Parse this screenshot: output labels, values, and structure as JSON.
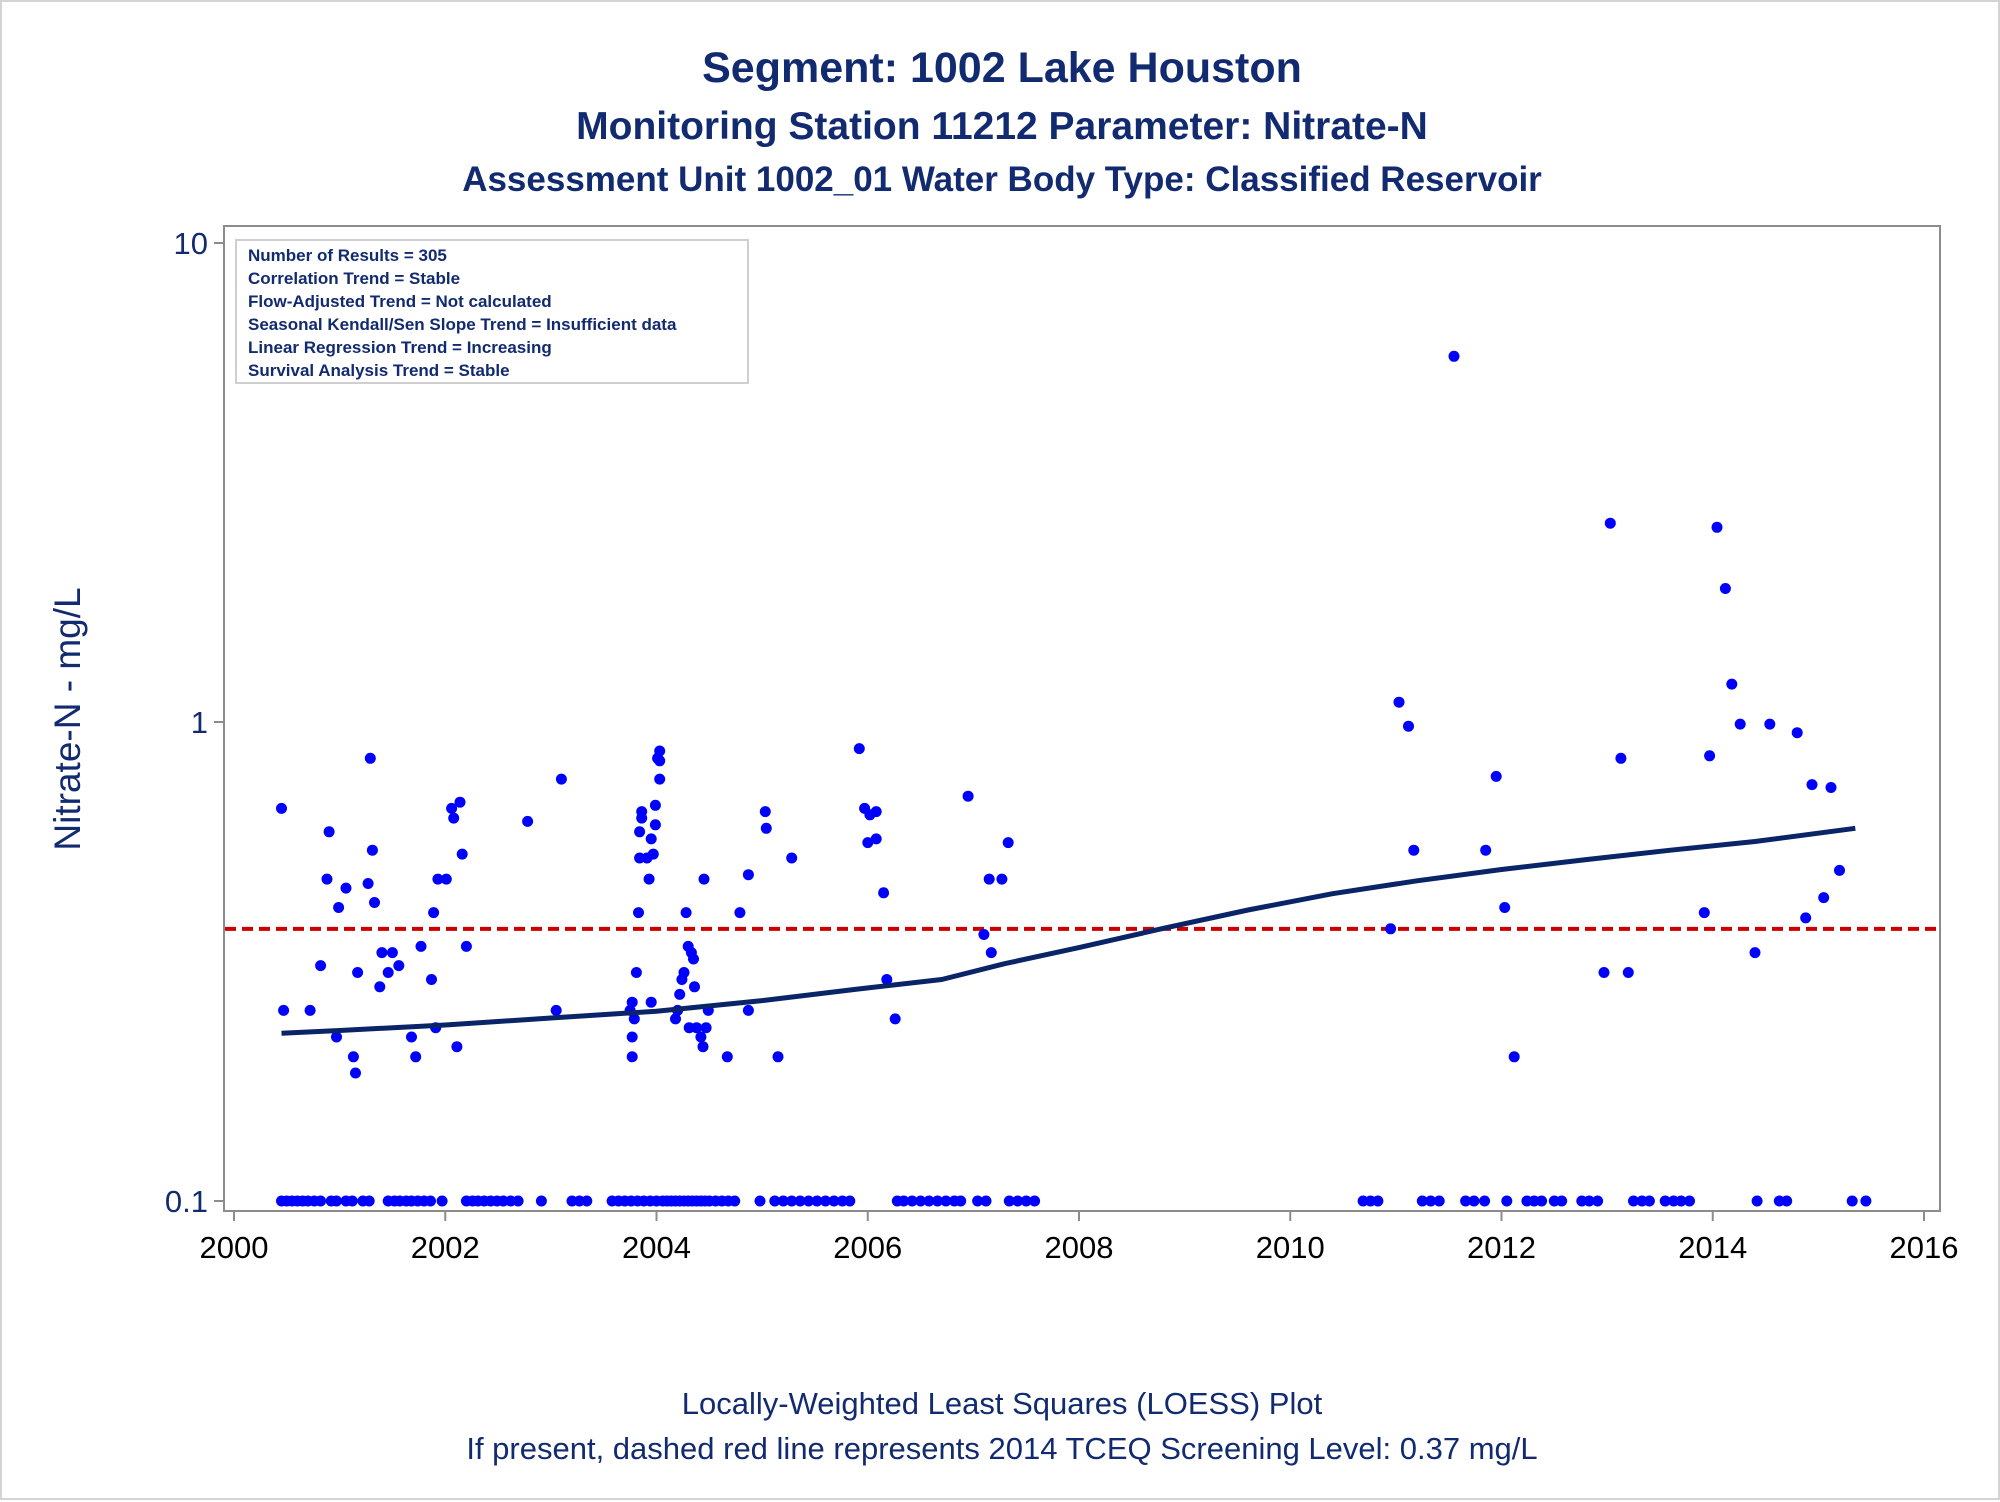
{
  "titles": {
    "line1": "Segment: 1002  Lake Houston",
    "line2": "Monitoring Station 11212 Parameter: Nitrate-N",
    "line3": "Assessment Unit 1002_01   Water Body Type: Classified Reservoir"
  },
  "footnotes": {
    "line1": "Locally-Weighted Least Squares (LOESS) Plot",
    "line2": "If present, dashed red line represents 2014 TCEQ Screening Level: 0.37 mg/L"
  },
  "stats_box": [
    "Number of Results = 305",
    "Correlation Trend = Stable",
    "Flow-Adjusted Trend = Not calculated",
    "Seasonal Kendall/Sen Slope Trend = Insufficient data",
    "Linear Regression Trend = Increasing",
    "Survival Analysis Trend = Stable"
  ],
  "colors": {
    "points": "#0000ff",
    "loess": "#0a2468",
    "screening": "#cc0000",
    "text": "#122b70",
    "axis": "#8c8c8c"
  },
  "chart_data": {
    "type": "scatter",
    "ylabel": "Nitrate-N - mg/L",
    "xlabel": "",
    "y_scale": "log",
    "xlim": [
      2000,
      2016
    ],
    "ylim": [
      0.1,
      10
    ],
    "x_ticks": [
      2000,
      2002,
      2004,
      2006,
      2008,
      2010,
      2012,
      2014,
      2016
    ],
    "x_tick_labels": [
      "2000",
      "2002",
      "2004",
      "2006",
      "2008",
      "2010",
      "2012",
      "2014",
      "2016"
    ],
    "y_ticks": [
      0.1,
      1,
      10
    ],
    "y_tick_labels": [
      "0.1",
      "1",
      "10"
    ],
    "grid": false,
    "screening_level": 0.37,
    "series": [
      {
        "kind": "points",
        "points": [
          [
            2000.45,
            0.66
          ],
          [
            2000.47,
            0.25
          ],
          [
            2000.72,
            0.25
          ],
          [
            2000.82,
            0.31
          ],
          [
            2000.88,
            0.47
          ],
          [
            2000.9,
            0.59
          ],
          [
            2000.97,
            0.22
          ],
          [
            2000.99,
            0.41
          ],
          [
            2001.06,
            0.45
          ],
          [
            2001.13,
            0.2
          ],
          [
            2001.15,
            0.185
          ],
          [
            2001.17,
            0.3
          ],
          [
            2001.27,
            0.46
          ],
          [
            2001.29,
            0.84
          ],
          [
            2001.31,
            0.54
          ],
          [
            2001.33,
            0.42
          ],
          [
            2001.38,
            0.28
          ],
          [
            2001.4,
            0.33
          ],
          [
            2001.46,
            0.3
          ],
          [
            2001.5,
            0.33
          ],
          [
            2001.56,
            0.31
          ],
          [
            2001.68,
            0.22
          ],
          [
            2001.72,
            0.2
          ],
          [
            2001.77,
            0.34
          ],
          [
            2001.87,
            0.29
          ],
          [
            2001.89,
            0.4
          ],
          [
            2001.91,
            0.23
          ],
          [
            2001.93,
            0.47
          ],
          [
            2002.01,
            0.47
          ],
          [
            2002.06,
            0.66
          ],
          [
            2002.08,
            0.63
          ],
          [
            2002.11,
            0.21
          ],
          [
            2002.14,
            0.68
          ],
          [
            2002.16,
            0.53
          ],
          [
            2002.2,
            0.34
          ],
          [
            2002.78,
            0.62
          ],
          [
            2003.1,
            0.76
          ],
          [
            2003.05,
            0.25
          ],
          [
            2003.75,
            0.25
          ],
          [
            2003.77,
            0.26
          ],
          [
            2003.77,
            0.22
          ],
          [
            2003.77,
            0.2
          ],
          [
            2003.79,
            0.24
          ],
          [
            2003.81,
            0.3
          ],
          [
            2003.83,
            0.4
          ],
          [
            2003.84,
            0.52
          ],
          [
            2003.84,
            0.59
          ],
          [
            2003.86,
            0.63
          ],
          [
            2003.86,
            0.65
          ],
          [
            2003.91,
            0.52
          ],
          [
            2003.93,
            0.47
          ],
          [
            2003.95,
            0.26
          ],
          [
            2003.95,
            0.57
          ],
          [
            2003.97,
            0.53
          ],
          [
            2003.99,
            0.61
          ],
          [
            2003.99,
            0.67
          ],
          [
            2004.01,
            0.84
          ],
          [
            2004.03,
            0.83
          ],
          [
            2004.03,
            0.87
          ],
          [
            2004.03,
            0.76
          ],
          [
            2004.18,
            0.24
          ],
          [
            2004.2,
            0.25
          ],
          [
            2004.22,
            0.27
          ],
          [
            2004.24,
            0.29
          ],
          [
            2004.26,
            0.3
          ],
          [
            2004.28,
            0.4
          ],
          [
            2004.3,
            0.34
          ],
          [
            2004.31,
            0.23
          ],
          [
            2004.33,
            0.33
          ],
          [
            2004.35,
            0.32
          ],
          [
            2004.36,
            0.28
          ],
          [
            2004.38,
            0.23
          ],
          [
            2004.42,
            0.22
          ],
          [
            2004.44,
            0.21
          ],
          [
            2004.45,
            0.47
          ],
          [
            2004.47,
            0.23
          ],
          [
            2004.49,
            0.25
          ],
          [
            2004.67,
            0.2
          ],
          [
            2004.79,
            0.4
          ],
          [
            2004.87,
            0.48
          ],
          [
            2004.87,
            0.25
          ],
          [
            2005.03,
            0.65
          ],
          [
            2005.04,
            0.6
          ],
          [
            2005.15,
            0.2
          ],
          [
            2005.28,
            0.52
          ],
          [
            2005.92,
            0.88
          ],
          [
            2005.97,
            0.66
          ],
          [
            2006.0,
            0.56
          ],
          [
            2006.02,
            0.64
          ],
          [
            2006.08,
            0.65
          ],
          [
            2006.08,
            0.57
          ],
          [
            2006.15,
            0.44
          ],
          [
            2006.18,
            0.29
          ],
          [
            2006.26,
            0.24
          ],
          [
            2006.95,
            0.7
          ],
          [
            2007.1,
            0.36
          ],
          [
            2007.15,
            0.47
          ],
          [
            2007.17,
            0.33
          ],
          [
            2007.27,
            0.47
          ],
          [
            2007.33,
            0.56
          ],
          [
            2010.95,
            0.37
          ],
          [
            2011.03,
            1.1
          ],
          [
            2011.12,
            0.98
          ],
          [
            2011.17,
            0.54
          ],
          [
            2011.55,
            5.8
          ],
          [
            2011.85,
            0.54
          ],
          [
            2011.95,
            0.77
          ],
          [
            2012.03,
            0.41
          ],
          [
            2012.12,
            0.2
          ],
          [
            2012.97,
            0.3
          ],
          [
            2013.03,
            2.6
          ],
          [
            2013.13,
            0.84
          ],
          [
            2013.2,
            0.3
          ],
          [
            2013.92,
            0.4
          ],
          [
            2013.97,
            0.85
          ],
          [
            2014.04,
            2.55
          ],
          [
            2014.12,
            1.9
          ],
          [
            2014.18,
            1.2
          ],
          [
            2014.26,
            0.99
          ],
          [
            2014.4,
            0.33
          ],
          [
            2014.54,
            0.99
          ],
          [
            2014.8,
            0.95
          ],
          [
            2014.88,
            0.39
          ],
          [
            2014.94,
            0.74
          ],
          [
            2015.05,
            0.43
          ],
          [
            2015.12,
            0.73
          ],
          [
            2015.2,
            0.49
          ],
          [
            2000.45,
            0.1
          ],
          [
            2000.5,
            0.1
          ],
          [
            2000.55,
            0.1
          ],
          [
            2000.6,
            0.1
          ],
          [
            2000.65,
            0.1
          ],
          [
            2000.7,
            0.1
          ],
          [
            2000.76,
            0.1
          ],
          [
            2000.82,
            0.1
          ],
          [
            2000.92,
            0.1
          ],
          [
            2000.97,
            0.1
          ],
          [
            2001.06,
            0.1
          ],
          [
            2001.12,
            0.1
          ],
          [
            2001.22,
            0.1
          ],
          [
            2001.28,
            0.1
          ],
          [
            2001.46,
            0.1
          ],
          [
            2001.52,
            0.1
          ],
          [
            2001.57,
            0.1
          ],
          [
            2001.63,
            0.1
          ],
          [
            2001.68,
            0.1
          ],
          [
            2001.74,
            0.1
          ],
          [
            2001.8,
            0.1
          ],
          [
            2001.86,
            0.1
          ],
          [
            2001.97,
            0.1
          ],
          [
            2002.2,
            0.1
          ],
          [
            2002.26,
            0.1
          ],
          [
            2002.31,
            0.1
          ],
          [
            2002.37,
            0.1
          ],
          [
            2002.43,
            0.1
          ],
          [
            2002.49,
            0.1
          ],
          [
            2002.55,
            0.1
          ],
          [
            2002.62,
            0.1
          ],
          [
            2002.69,
            0.1
          ],
          [
            2002.91,
            0.1
          ],
          [
            2003.2,
            0.1
          ],
          [
            2003.27,
            0.1
          ],
          [
            2003.34,
            0.1
          ],
          [
            2003.58,
            0.1
          ],
          [
            2003.64,
            0.1
          ],
          [
            2003.7,
            0.1
          ],
          [
            2003.76,
            0.1
          ],
          [
            2003.82,
            0.1
          ],
          [
            2003.88,
            0.1
          ],
          [
            2003.94,
            0.1
          ],
          [
            2004.0,
            0.1
          ],
          [
            2004.06,
            0.1
          ],
          [
            2004.1,
            0.1
          ],
          [
            2004.14,
            0.1
          ],
          [
            2004.18,
            0.1
          ],
          [
            2004.22,
            0.1
          ],
          [
            2004.26,
            0.1
          ],
          [
            2004.3,
            0.1
          ],
          [
            2004.34,
            0.1
          ],
          [
            2004.38,
            0.1
          ],
          [
            2004.42,
            0.1
          ],
          [
            2004.46,
            0.1
          ],
          [
            2004.5,
            0.1
          ],
          [
            2004.56,
            0.1
          ],
          [
            2004.62,
            0.1
          ],
          [
            2004.68,
            0.1
          ],
          [
            2004.74,
            0.1
          ],
          [
            2004.98,
            0.1
          ],
          [
            2005.12,
            0.1
          ],
          [
            2005.2,
            0.1
          ],
          [
            2005.28,
            0.1
          ],
          [
            2005.36,
            0.1
          ],
          [
            2005.44,
            0.1
          ],
          [
            2005.52,
            0.1
          ],
          [
            2005.6,
            0.1
          ],
          [
            2005.68,
            0.1
          ],
          [
            2005.76,
            0.1
          ],
          [
            2005.83,
            0.1
          ],
          [
            2006.28,
            0.1
          ],
          [
            2006.34,
            0.1
          ],
          [
            2006.42,
            0.1
          ],
          [
            2006.5,
            0.1
          ],
          [
            2006.58,
            0.1
          ],
          [
            2006.66,
            0.1
          ],
          [
            2006.74,
            0.1
          ],
          [
            2006.82,
            0.1
          ],
          [
            2006.88,
            0.1
          ],
          [
            2007.04,
            0.1
          ],
          [
            2007.12,
            0.1
          ],
          [
            2007.34,
            0.1
          ],
          [
            2007.42,
            0.1
          ],
          [
            2007.5,
            0.1
          ],
          [
            2007.58,
            0.1
          ],
          [
            2010.69,
            0.1
          ],
          [
            2010.76,
            0.1
          ],
          [
            2010.83,
            0.1
          ],
          [
            2011.25,
            0.1
          ],
          [
            2011.33,
            0.1
          ],
          [
            2011.41,
            0.1
          ],
          [
            2011.66,
            0.1
          ],
          [
            2011.74,
            0.1
          ],
          [
            2011.84,
            0.1
          ],
          [
            2012.05,
            0.1
          ],
          [
            2012.24,
            0.1
          ],
          [
            2012.31,
            0.1
          ],
          [
            2012.38,
            0.1
          ],
          [
            2012.5,
            0.1
          ],
          [
            2012.57,
            0.1
          ],
          [
            2012.76,
            0.1
          ],
          [
            2012.83,
            0.1
          ],
          [
            2012.91,
            0.1
          ],
          [
            2013.25,
            0.1
          ],
          [
            2013.33,
            0.1
          ],
          [
            2013.4,
            0.1
          ],
          [
            2013.55,
            0.1
          ],
          [
            2013.63,
            0.1
          ],
          [
            2013.7,
            0.1
          ],
          [
            2013.78,
            0.1
          ],
          [
            2014.42,
            0.1
          ],
          [
            2014.63,
            0.1
          ],
          [
            2014.7,
            0.1
          ],
          [
            2015.32,
            0.1
          ],
          [
            2015.45,
            0.1
          ]
        ]
      },
      {
        "kind": "loess",
        "points": [
          [
            2000.45,
            0.224
          ],
          [
            2001.0,
            0.227
          ],
          [
            2002.0,
            0.233
          ],
          [
            2003.0,
            0.241
          ],
          [
            2004.0,
            0.249
          ],
          [
            2005.0,
            0.262
          ],
          [
            2005.9,
            0.277
          ],
          [
            2006.7,
            0.29
          ],
          [
            2007.3,
            0.313
          ],
          [
            2008.0,
            0.338
          ],
          [
            2008.8,
            0.371
          ],
          [
            2009.6,
            0.405
          ],
          [
            2010.4,
            0.438
          ],
          [
            2011.2,
            0.466
          ],
          [
            2012.0,
            0.492
          ],
          [
            2012.8,
            0.516
          ],
          [
            2013.6,
            0.54
          ],
          [
            2014.4,
            0.563
          ],
          [
            2015.35,
            0.6
          ]
        ]
      }
    ]
  }
}
